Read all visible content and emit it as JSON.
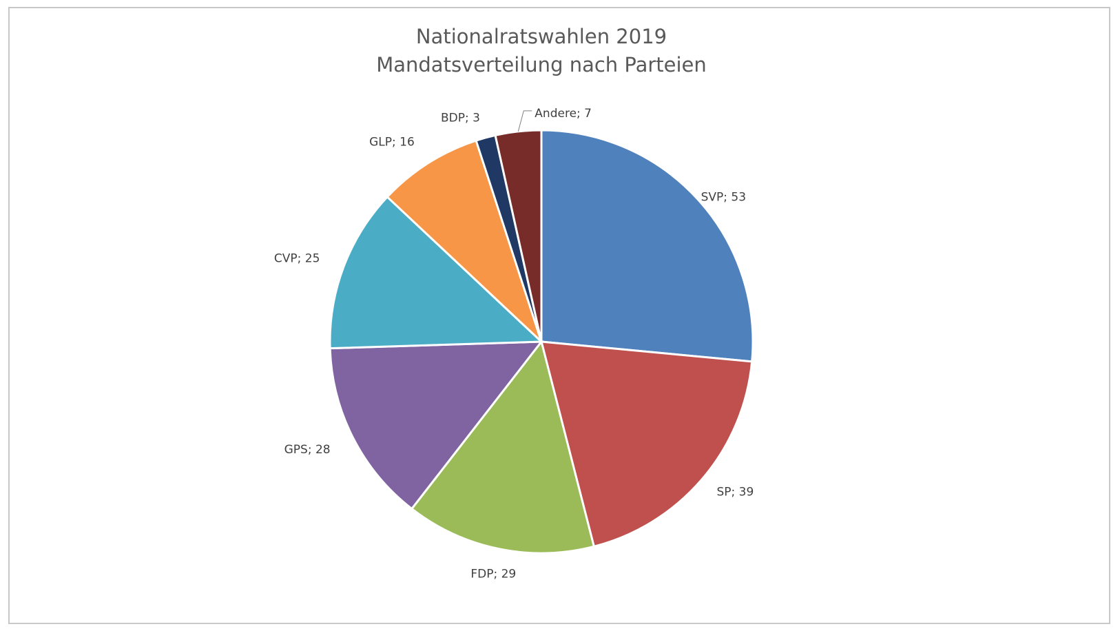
{
  "chart_data": {
    "type": "pie",
    "title": [
      "Nationalratswahlen 2019",
      "Mandatsverteilung nach Parteien"
    ],
    "categories": [
      "SVP",
      "SP",
      "FDP",
      "GPS",
      "CVP",
      "GLP",
      "BDP",
      "Andere"
    ],
    "values": [
      53,
      39,
      29,
      28,
      25,
      16,
      3,
      7
    ],
    "colors": [
      "#4f81bd",
      "#c0504d",
      "#9bbb59",
      "#8064a2",
      "#4bacc6",
      "#f79646",
      "#1f3864",
      "#772c2a"
    ],
    "labels": [
      "SVP; 53",
      "SP; 39",
      "FDP; 29",
      "GPS; 28",
      "CVP; 25",
      "GLP; 16",
      "BDP; 3",
      "Andere; 7"
    ],
    "start": "12 o'clock",
    "direction": "clockwise",
    "legend": "none"
  }
}
